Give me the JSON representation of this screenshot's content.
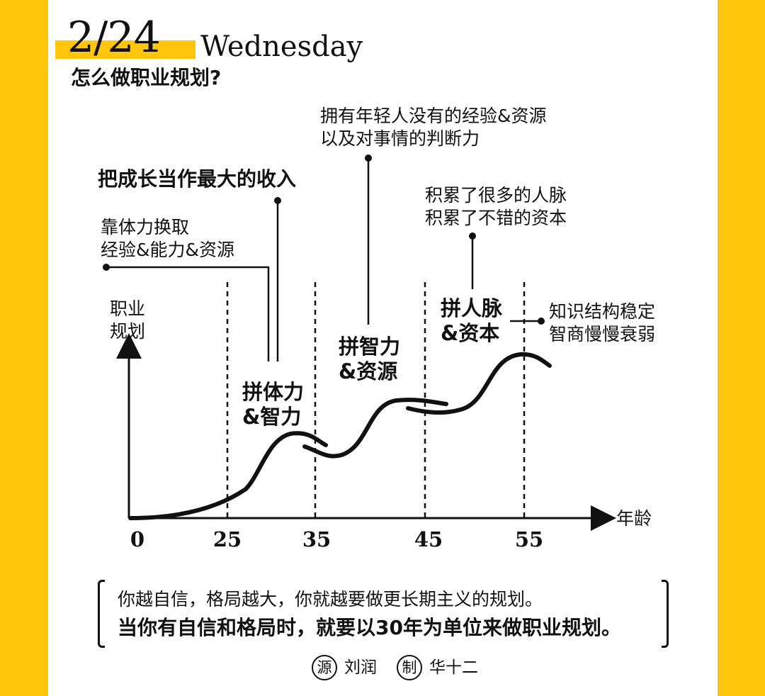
{
  "header": {
    "date": "2/24",
    "weekday": "Wednesday",
    "title": "怎么做职业规划?"
  },
  "colors": {
    "accent": "#FFC60B",
    "ink": "#111111"
  },
  "chart_data": {
    "type": "diagram",
    "y_axis_label": [
      "职业",
      "规划"
    ],
    "x_axis_label": "年龄",
    "x_ticks": [
      "0",
      "25",
      "35",
      "45",
      "55"
    ],
    "stages": [
      {
        "lines": [
          "拼体力",
          "&智力"
        ]
      },
      {
        "lines": [
          "拼智力",
          "&资源"
        ]
      },
      {
        "lines": [
          "拼人脉",
          "&资本"
        ]
      }
    ],
    "annotations": [
      {
        "lines": [
          "靠体力换取",
          "经验&能力&资源"
        ],
        "bold": false
      },
      {
        "lines": [
          "把成长当作最大的收入"
        ],
        "bold": true
      },
      {
        "lines": [
          "拥有年轻人没有的经验&资源",
          "以及对事情的判断力"
        ],
        "bold": false
      },
      {
        "lines": [
          "积累了很多的人脉",
          "积累了不错的资本"
        ],
        "bold": false
      },
      {
        "lines": [
          "知识结构稳定",
          "智商慢慢衰弱"
        ],
        "bold": false
      }
    ]
  },
  "quote": {
    "line1": "你越自信，格局越大，你就越要做更长期主义的规划。",
    "line2": "当你有自信和格局时，就要以30年为单位来做职业规划。"
  },
  "credits": {
    "source_badge": "源",
    "source_name": "刘润",
    "maker_badge": "制",
    "maker_name": "华十二"
  }
}
